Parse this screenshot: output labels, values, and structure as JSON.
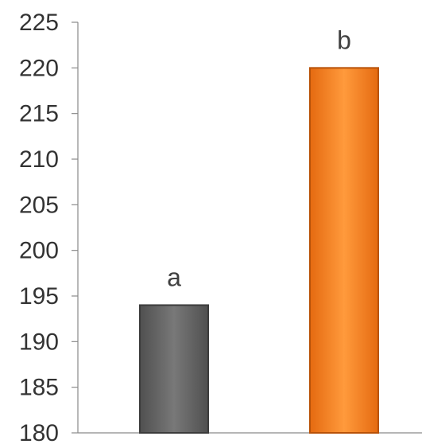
{
  "chart_data": {
    "type": "bar",
    "categories": [
      "",
      ""
    ],
    "values": [
      194,
      220
    ],
    "bar_labels": [
      "a",
      "b"
    ],
    "colors": [
      "#6b6b6b",
      "#f07f22"
    ],
    "ylim": [
      180,
      225
    ],
    "yticks": [
      180,
      185,
      190,
      195,
      200,
      205,
      210,
      215,
      220,
      225
    ],
    "title": "",
    "xlabel": "",
    "ylabel": "",
    "grid": false,
    "legend": "none"
  }
}
